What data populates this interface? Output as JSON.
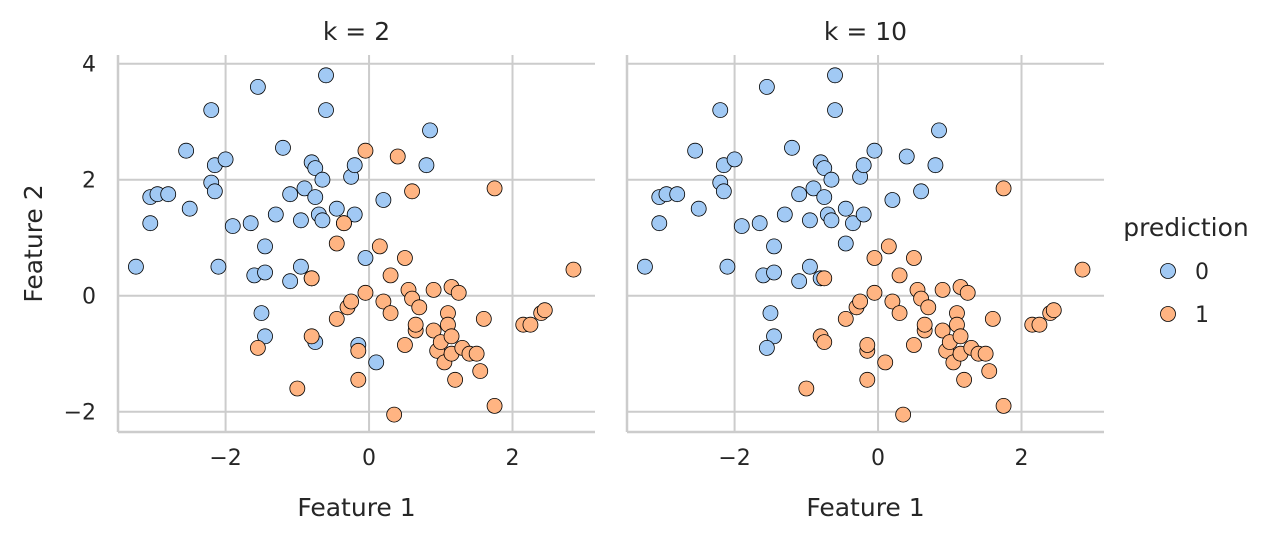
{
  "colors": {
    "class_0": "#a1c9f4",
    "class_1": "#ffb482",
    "grid": "#cccccc",
    "edge": "#000000"
  },
  "legend": {
    "title": "prediction",
    "items": [
      {
        "label": "0",
        "class": 0
      },
      {
        "label": "1",
        "class": 1
      }
    ],
    "placement": "right-outside"
  },
  "chart_data": [
    {
      "type": "scatter",
      "title": "k = 2",
      "xlabel": "Feature 1",
      "ylabel": "Feature 2",
      "xlim": [
        -3.5,
        3.15
      ],
      "ylim": [
        -2.35,
        4.15
      ],
      "xticks": [
        -2,
        0,
        2
      ],
      "xtick_labels": [
        "−2",
        "0",
        "2"
      ],
      "yticks": [
        -2,
        0,
        2,
        4
      ],
      "ytick_labels": [
        "−2",
        "0",
        "2",
        "4"
      ],
      "grid": true,
      "points": [
        {
          "x": -3.25,
          "y": 0.5,
          "c": 0
        },
        {
          "x": -3.05,
          "y": 1.25,
          "c": 0
        },
        {
          "x": -3.05,
          "y": 1.7,
          "c": 0
        },
        {
          "x": -2.95,
          "y": 1.75,
          "c": 0
        },
        {
          "x": -2.8,
          "y": 1.75,
          "c": 0
        },
        {
          "x": -2.55,
          "y": 2.5,
          "c": 0
        },
        {
          "x": -2.5,
          "y": 1.5,
          "c": 0
        },
        {
          "x": -2.2,
          "y": 3.2,
          "c": 0
        },
        {
          "x": -2.2,
          "y": 1.95,
          "c": 0
        },
        {
          "x": -2.15,
          "y": 2.25,
          "c": 0
        },
        {
          "x": -2.15,
          "y": 1.8,
          "c": 0
        },
        {
          "x": -2.1,
          "y": 0.5,
          "c": 0
        },
        {
          "x": -2.0,
          "y": 2.35,
          "c": 0
        },
        {
          "x": -1.9,
          "y": 1.2,
          "c": 0
        },
        {
          "x": -1.65,
          "y": 1.25,
          "c": 0
        },
        {
          "x": -1.6,
          "y": 0.35,
          "c": 0
        },
        {
          "x": -1.55,
          "y": 3.6,
          "c": 0
        },
        {
          "x": -1.5,
          "y": -0.3,
          "c": 0
        },
        {
          "x": -1.45,
          "y": 0.4,
          "c": 0
        },
        {
          "x": -1.45,
          "y": 0.85,
          "c": 0
        },
        {
          "x": -1.45,
          "y": -0.7,
          "c": 0
        },
        {
          "x": -1.3,
          "y": 1.4,
          "c": 0
        },
        {
          "x": -1.2,
          "y": 2.55,
          "c": 0
        },
        {
          "x": -1.1,
          "y": 0.25,
          "c": 0
        },
        {
          "x": -1.1,
          "y": 1.75,
          "c": 0
        },
        {
          "x": -0.95,
          "y": 1.3,
          "c": 0
        },
        {
          "x": -0.95,
          "y": 0.5,
          "c": 0
        },
        {
          "x": -0.9,
          "y": 1.85,
          "c": 0
        },
        {
          "x": -0.8,
          "y": 0.3,
          "c": 0
        },
        {
          "x": -0.8,
          "y": 2.3,
          "c": 0
        },
        {
          "x": -0.75,
          "y": 2.2,
          "c": 0
        },
        {
          "x": -0.75,
          "y": 1.7,
          "c": 0
        },
        {
          "x": -0.75,
          "y": -0.8,
          "c": 0
        },
        {
          "x": -0.7,
          "y": 1.4,
          "c": 0
        },
        {
          "x": -0.65,
          "y": 1.3,
          "c": 0
        },
        {
          "x": -0.65,
          "y": 2.0,
          "c": 0
        },
        {
          "x": -0.6,
          "y": 3.8,
          "c": 0
        },
        {
          "x": -0.6,
          "y": 3.2,
          "c": 0
        },
        {
          "x": -0.45,
          "y": 1.5,
          "c": 0
        },
        {
          "x": -0.35,
          "y": 1.25,
          "c": 0
        },
        {
          "x": -0.25,
          "y": 2.05,
          "c": 0
        },
        {
          "x": -0.2,
          "y": 2.25,
          "c": 0
        },
        {
          "x": -0.2,
          "y": 1.4,
          "c": 0
        },
        {
          "x": -0.15,
          "y": -0.85,
          "c": 0
        },
        {
          "x": -0.05,
          "y": 0.65,
          "c": 0
        },
        {
          "x": 0.1,
          "y": -1.15,
          "c": 0
        },
        {
          "x": 0.2,
          "y": 1.65,
          "c": 0
        },
        {
          "x": 0.85,
          "y": 2.85,
          "c": 0
        },
        {
          "x": 0.8,
          "y": 2.25,
          "c": 0
        },
        {
          "x": -1.55,
          "y": -0.9,
          "c": 1
        },
        {
          "x": -1.0,
          "y": -1.6,
          "c": 1
        },
        {
          "x": -0.8,
          "y": 0.3,
          "c": 1
        },
        {
          "x": -0.8,
          "y": -0.7,
          "c": 1
        },
        {
          "x": -0.45,
          "y": -0.4,
          "c": 1
        },
        {
          "x": -0.45,
          "y": 0.9,
          "c": 1
        },
        {
          "x": -0.35,
          "y": 1.25,
          "c": 1
        },
        {
          "x": -0.3,
          "y": -0.2,
          "c": 1
        },
        {
          "x": -0.25,
          "y": -0.1,
          "c": 1
        },
        {
          "x": -0.15,
          "y": -1.45,
          "c": 1
        },
        {
          "x": -0.15,
          "y": -0.95,
          "c": 1
        },
        {
          "x": -0.05,
          "y": 0.05,
          "c": 1
        },
        {
          "x": -0.05,
          "y": 2.5,
          "c": 1
        },
        {
          "x": 0.15,
          "y": 0.85,
          "c": 1
        },
        {
          "x": 0.2,
          "y": -0.1,
          "c": 1
        },
        {
          "x": 0.3,
          "y": 0.35,
          "c": 1
        },
        {
          "x": 0.3,
          "y": -0.3,
          "c": 1
        },
        {
          "x": 0.35,
          "y": -2.05,
          "c": 1
        },
        {
          "x": 0.4,
          "y": 2.4,
          "c": 1
        },
        {
          "x": 0.5,
          "y": 0.65,
          "c": 1
        },
        {
          "x": 0.5,
          "y": -0.85,
          "c": 1
        },
        {
          "x": 0.55,
          "y": 0.1,
          "c": 1
        },
        {
          "x": 0.6,
          "y": 1.8,
          "c": 1
        },
        {
          "x": 0.6,
          "y": -0.05,
          "c": 1
        },
        {
          "x": 0.65,
          "y": -0.6,
          "c": 1
        },
        {
          "x": 0.65,
          "y": -0.5,
          "c": 1
        },
        {
          "x": 0.7,
          "y": -0.2,
          "c": 1
        },
        {
          "x": 0.9,
          "y": 0.1,
          "c": 1
        },
        {
          "x": 0.9,
          "y": -0.6,
          "c": 1
        },
        {
          "x": 0.95,
          "y": -0.95,
          "c": 1
        },
        {
          "x": 1.0,
          "y": -0.8,
          "c": 1
        },
        {
          "x": 1.05,
          "y": -1.15,
          "c": 1
        },
        {
          "x": 1.1,
          "y": -0.3,
          "c": 1
        },
        {
          "x": 1.1,
          "y": -0.5,
          "c": 1
        },
        {
          "x": 1.15,
          "y": 0.15,
          "c": 1
        },
        {
          "x": 1.15,
          "y": -0.7,
          "c": 1
        },
        {
          "x": 1.15,
          "y": -1.0,
          "c": 1
        },
        {
          "x": 1.2,
          "y": -1.45,
          "c": 1
        },
        {
          "x": 1.25,
          "y": 0.05,
          "c": 1
        },
        {
          "x": 1.3,
          "y": -0.9,
          "c": 1
        },
        {
          "x": 1.4,
          "y": -1.0,
          "c": 1
        },
        {
          "x": 1.5,
          "y": -1.0,
          "c": 1
        },
        {
          "x": 1.55,
          "y": -1.3,
          "c": 1
        },
        {
          "x": 1.6,
          "y": -0.4,
          "c": 1
        },
        {
          "x": 1.75,
          "y": 1.85,
          "c": 1
        },
        {
          "x": 1.75,
          "y": -1.9,
          "c": 1
        },
        {
          "x": 2.15,
          "y": -0.5,
          "c": 1
        },
        {
          "x": 2.25,
          "y": -0.5,
          "c": 1
        },
        {
          "x": 2.4,
          "y": -0.3,
          "c": 1
        },
        {
          "x": 2.45,
          "y": -0.25,
          "c": 1
        },
        {
          "x": 2.85,
          "y": 0.45,
          "c": 1
        }
      ]
    },
    {
      "type": "scatter",
      "title": "k = 10",
      "xlabel": "Feature 1",
      "ylabel": "",
      "xlim": [
        -3.5,
        3.15
      ],
      "ylim": [
        -2.35,
        4.15
      ],
      "xticks": [
        -2,
        0,
        2
      ],
      "xtick_labels": [
        "−2",
        "0",
        "2"
      ],
      "yticks": [
        -2,
        0,
        2,
        4
      ],
      "ytick_labels": [],
      "grid": true,
      "points": [
        {
          "x": -3.25,
          "y": 0.5,
          "c": 0
        },
        {
          "x": -3.05,
          "y": 1.25,
          "c": 0
        },
        {
          "x": -3.05,
          "y": 1.7,
          "c": 0
        },
        {
          "x": -2.95,
          "y": 1.75,
          "c": 0
        },
        {
          "x": -2.8,
          "y": 1.75,
          "c": 0
        },
        {
          "x": -2.55,
          "y": 2.5,
          "c": 0
        },
        {
          "x": -2.5,
          "y": 1.5,
          "c": 0
        },
        {
          "x": -2.2,
          "y": 3.2,
          "c": 0
        },
        {
          "x": -2.2,
          "y": 1.95,
          "c": 0
        },
        {
          "x": -2.15,
          "y": 2.25,
          "c": 0
        },
        {
          "x": -2.15,
          "y": 1.8,
          "c": 0
        },
        {
          "x": -2.1,
          "y": 0.5,
          "c": 0
        },
        {
          "x": -2.0,
          "y": 2.35,
          "c": 0
        },
        {
          "x": -1.9,
          "y": 1.2,
          "c": 0
        },
        {
          "x": -1.65,
          "y": 1.25,
          "c": 0
        },
        {
          "x": -1.6,
          "y": 0.35,
          "c": 0
        },
        {
          "x": -1.55,
          "y": 3.6,
          "c": 0
        },
        {
          "x": -1.5,
          "y": -0.3,
          "c": 0
        },
        {
          "x": -1.45,
          "y": 0.4,
          "c": 0
        },
        {
          "x": -1.45,
          "y": 0.85,
          "c": 0
        },
        {
          "x": -1.45,
          "y": -0.7,
          "c": 0
        },
        {
          "x": -1.55,
          "y": -0.9,
          "c": 0
        },
        {
          "x": -1.3,
          "y": 1.4,
          "c": 0
        },
        {
          "x": -1.2,
          "y": 2.55,
          "c": 0
        },
        {
          "x": -1.1,
          "y": 0.25,
          "c": 0
        },
        {
          "x": -1.1,
          "y": 1.75,
          "c": 0
        },
        {
          "x": -0.95,
          "y": 1.3,
          "c": 0
        },
        {
          "x": -0.95,
          "y": 0.5,
          "c": 0
        },
        {
          "x": -0.9,
          "y": 1.85,
          "c": 0
        },
        {
          "x": -0.8,
          "y": 0.3,
          "c": 0
        },
        {
          "x": -0.8,
          "y": 2.3,
          "c": 0
        },
        {
          "x": -0.75,
          "y": 2.2,
          "c": 0
        },
        {
          "x": -0.75,
          "y": 1.7,
          "c": 0
        },
        {
          "x": -0.7,
          "y": 1.4,
          "c": 0
        },
        {
          "x": -0.65,
          "y": 1.3,
          "c": 0
        },
        {
          "x": -0.65,
          "y": 2.0,
          "c": 0
        },
        {
          "x": -0.6,
          "y": 3.8,
          "c": 0
        },
        {
          "x": -0.6,
          "y": 3.2,
          "c": 0
        },
        {
          "x": -0.45,
          "y": 1.5,
          "c": 0
        },
        {
          "x": -0.45,
          "y": 0.9,
          "c": 0
        },
        {
          "x": -0.35,
          "y": 1.25,
          "c": 0
        },
        {
          "x": -0.25,
          "y": 2.05,
          "c": 0
        },
        {
          "x": -0.2,
          "y": 2.25,
          "c": 0
        },
        {
          "x": -0.2,
          "y": 1.4,
          "c": 0
        },
        {
          "x": -0.05,
          "y": 2.5,
          "c": 0
        },
        {
          "x": 0.2,
          "y": 1.65,
          "c": 0
        },
        {
          "x": 0.4,
          "y": 2.4,
          "c": 0
        },
        {
          "x": 0.6,
          "y": 1.8,
          "c": 0
        },
        {
          "x": 0.85,
          "y": 2.85,
          "c": 0
        },
        {
          "x": 0.8,
          "y": 2.25,
          "c": 0
        },
        {
          "x": -1.0,
          "y": -1.6,
          "c": 1
        },
        {
          "x": -0.8,
          "y": -0.7,
          "c": 1
        },
        {
          "x": -0.75,
          "y": -0.8,
          "c": 1
        },
        {
          "x": -0.75,
          "y": 0.3,
          "c": 1
        },
        {
          "x": -0.45,
          "y": -0.4,
          "c": 1
        },
        {
          "x": -0.3,
          "y": -0.2,
          "c": 1
        },
        {
          "x": -0.25,
          "y": -0.1,
          "c": 1
        },
        {
          "x": -0.15,
          "y": -1.45,
          "c": 1
        },
        {
          "x": -0.15,
          "y": -0.95,
          "c": 1
        },
        {
          "x": -0.15,
          "y": -0.85,
          "c": 1
        },
        {
          "x": -0.05,
          "y": 0.65,
          "c": 1
        },
        {
          "x": -0.05,
          "y": 0.05,
          "c": 1
        },
        {
          "x": 0.1,
          "y": -1.15,
          "c": 1
        },
        {
          "x": 0.15,
          "y": 0.85,
          "c": 1
        },
        {
          "x": 0.2,
          "y": -0.1,
          "c": 1
        },
        {
          "x": 0.3,
          "y": 0.35,
          "c": 1
        },
        {
          "x": 0.3,
          "y": -0.3,
          "c": 1
        },
        {
          "x": 0.35,
          "y": -2.05,
          "c": 1
        },
        {
          "x": 0.5,
          "y": 0.65,
          "c": 1
        },
        {
          "x": 0.5,
          "y": -0.85,
          "c": 1
        },
        {
          "x": 0.55,
          "y": 0.1,
          "c": 1
        },
        {
          "x": 0.6,
          "y": -0.05,
          "c": 1
        },
        {
          "x": 0.65,
          "y": -0.6,
          "c": 1
        },
        {
          "x": 0.65,
          "y": -0.5,
          "c": 1
        },
        {
          "x": 0.7,
          "y": -0.2,
          "c": 1
        },
        {
          "x": 0.9,
          "y": 0.1,
          "c": 1
        },
        {
          "x": 0.9,
          "y": -0.6,
          "c": 1
        },
        {
          "x": 0.95,
          "y": -0.95,
          "c": 1
        },
        {
          "x": 1.0,
          "y": -0.8,
          "c": 1
        },
        {
          "x": 1.05,
          "y": -1.15,
          "c": 1
        },
        {
          "x": 1.1,
          "y": -0.3,
          "c": 1
        },
        {
          "x": 1.1,
          "y": -0.5,
          "c": 1
        },
        {
          "x": 1.15,
          "y": 0.15,
          "c": 1
        },
        {
          "x": 1.15,
          "y": -0.7,
          "c": 1
        },
        {
          "x": 1.15,
          "y": -1.0,
          "c": 1
        },
        {
          "x": 1.2,
          "y": -1.45,
          "c": 1
        },
        {
          "x": 1.25,
          "y": 0.05,
          "c": 1
        },
        {
          "x": 1.3,
          "y": -0.9,
          "c": 1
        },
        {
          "x": 1.4,
          "y": -1.0,
          "c": 1
        },
        {
          "x": 1.5,
          "y": -1.0,
          "c": 1
        },
        {
          "x": 1.55,
          "y": -1.3,
          "c": 1
        },
        {
          "x": 1.6,
          "y": -0.4,
          "c": 1
        },
        {
          "x": 1.75,
          "y": 1.85,
          "c": 1
        },
        {
          "x": 1.75,
          "y": -1.9,
          "c": 1
        },
        {
          "x": 2.15,
          "y": -0.5,
          "c": 1
        },
        {
          "x": 2.25,
          "y": -0.5,
          "c": 1
        },
        {
          "x": 2.4,
          "y": -0.3,
          "c": 1
        },
        {
          "x": 2.45,
          "y": -0.25,
          "c": 1
        },
        {
          "x": 2.85,
          "y": 0.45,
          "c": 1
        }
      ]
    }
  ]
}
